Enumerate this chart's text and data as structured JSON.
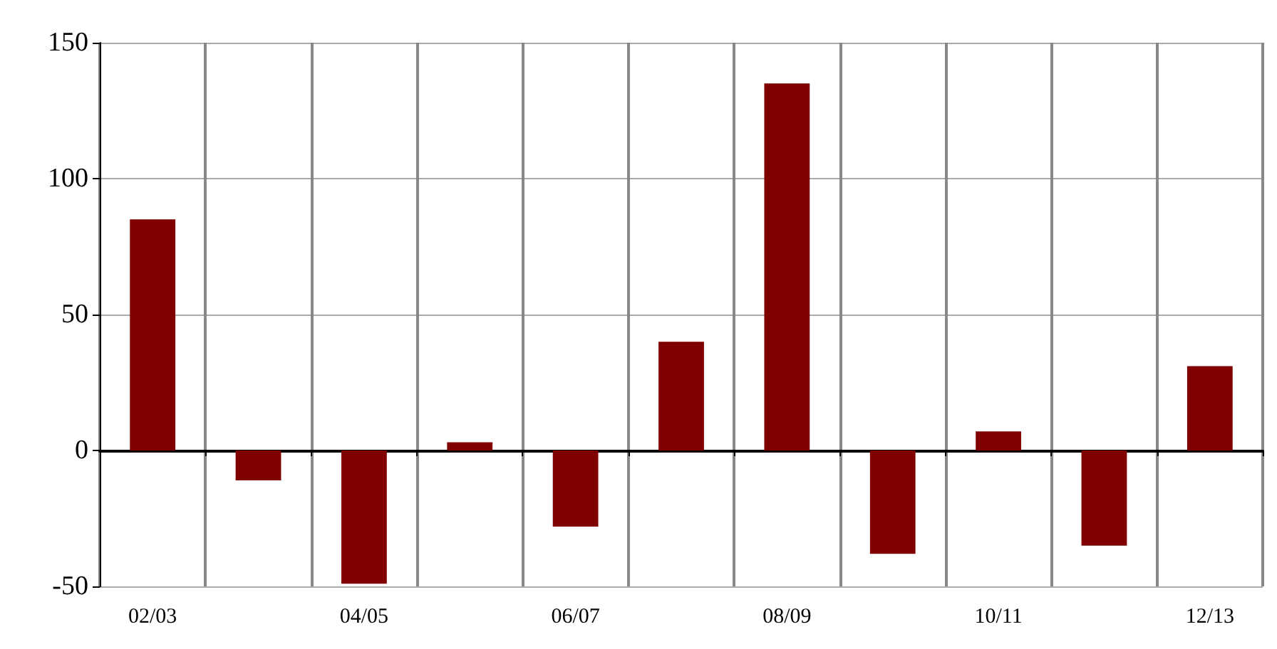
{
  "chart_data": {
    "type": "bar",
    "categories": [
      "02/03",
      null,
      "04/05",
      null,
      "06/07",
      null,
      "08/09",
      null,
      "10/11",
      null,
      "12/13"
    ],
    "values": [
      85,
      -11,
      -49,
      3,
      -28,
      40,
      135,
      -38,
      7,
      -35,
      31
    ],
    "color": "#800000",
    "ylim": [
      -50,
      150
    ],
    "yticks": [
      -50,
      0,
      50,
      100,
      150
    ],
    "grid": true
  }
}
